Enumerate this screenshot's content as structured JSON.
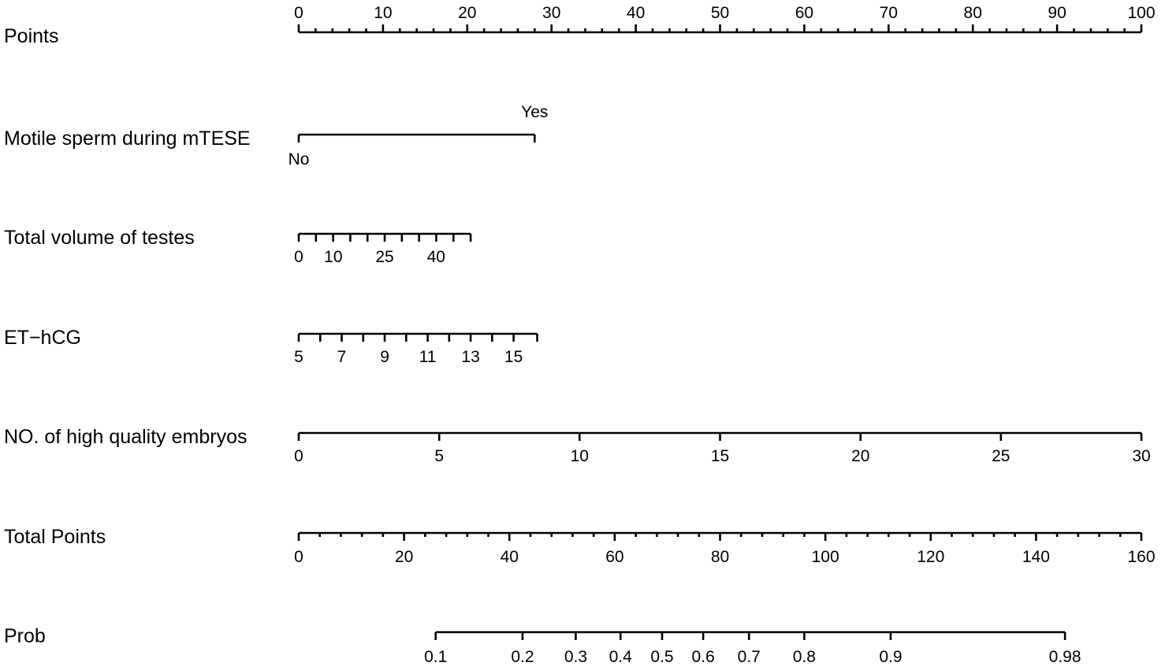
{
  "chart_data": {
    "type": "nomogram",
    "title": "",
    "points_range": [
      0,
      100
    ],
    "rows": [
      {
        "name": "Points",
        "kind": "points",
        "labels": [
          "0",
          "10",
          "20",
          "30",
          "40",
          "50",
          "60",
          "70",
          "80",
          "90",
          "100"
        ],
        "label_values": [
          0,
          10,
          20,
          30,
          40,
          50,
          60,
          70,
          80,
          90,
          100
        ],
        "minor_values": [
          0,
          2,
          4,
          6,
          8,
          10,
          12,
          14,
          16,
          18,
          20,
          22,
          24,
          26,
          28,
          30,
          32,
          34,
          36,
          38,
          40,
          42,
          44,
          46,
          48,
          50,
          52,
          54,
          56,
          58,
          60,
          62,
          64,
          66,
          68,
          70,
          72,
          74,
          76,
          78,
          80,
          82,
          84,
          86,
          88,
          90,
          92,
          94,
          96,
          98,
          100
        ]
      },
      {
        "name": "Motile sperm during mTESE",
        "kind": "categorical",
        "categories": [
          {
            "label": "No",
            "points": 0
          },
          {
            "label": "Yes",
            "points": 28
          }
        ]
      },
      {
        "name": "Total volume of testes",
        "kind": "continuous",
        "labels": [
          "0",
          "10",
          "25",
          "40"
        ],
        "label_points": [
          0,
          4.1,
          10.2,
          16.3
        ],
        "tick_points": [
          0,
          2.04,
          4.08,
          6.12,
          8.16,
          10.2,
          12.24,
          14.28,
          16.32,
          18.36,
          20.4
        ]
      },
      {
        "name": "ET−hCG",
        "kind": "continuous",
        "labels": [
          "5",
          "7",
          "9",
          "11",
          "13",
          "15"
        ],
        "label_points": [
          0,
          5.1,
          10.2,
          15.3,
          20.4,
          25.5
        ],
        "tick_points": [
          0,
          2.55,
          5.1,
          7.65,
          10.2,
          12.75,
          15.3,
          17.85,
          20.4,
          22.95,
          25.5,
          28.3
        ]
      },
      {
        "name": "NO. of high quality embryos",
        "kind": "continuous",
        "labels": [
          "0",
          "5",
          "10",
          "15",
          "20",
          "25",
          "30"
        ],
        "label_points": [
          0,
          16.67,
          33.33,
          50,
          66.67,
          83.33,
          100
        ],
        "tick_points": [
          0,
          16.67,
          33.33,
          50,
          66.67,
          83.33,
          100
        ]
      },
      {
        "name": "Total Points",
        "kind": "total",
        "range": [
          0,
          160
        ],
        "labels": [
          "0",
          "20",
          "40",
          "60",
          "80",
          "100",
          "120",
          "140",
          "160"
        ],
        "label_values": [
          0,
          20,
          40,
          60,
          80,
          100,
          120,
          140,
          160
        ],
        "minor_step": 4
      },
      {
        "name": "Prob",
        "kind": "probability",
        "labels": [
          "0.1",
          "0.2",
          "0.3",
          "0.4",
          "0.5",
          "0.6",
          "0.7",
          "0.8",
          "0.9",
          "0.98"
        ],
        "label_values": [
          0.1,
          0.2,
          0.3,
          0.4,
          0.5,
          0.6,
          0.7,
          0.8,
          0.9,
          0.98
        ],
        "total_points_at_labels": [
          26,
          42.5,
          52.6,
          61.1,
          69,
          76.8,
          85.5,
          96,
          112.4,
          145.5
        ]
      }
    ]
  }
}
